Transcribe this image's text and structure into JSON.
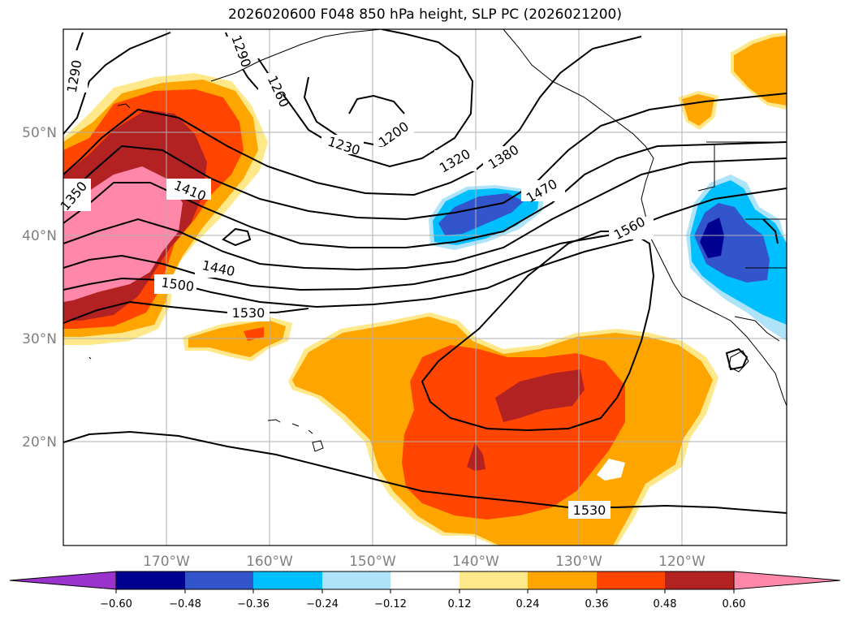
{
  "title": "2026020600 F048 850 hPa height, SLP PC (2026021200)",
  "lat_labels": [
    "50°N",
    "40°N",
    "30°N",
    "20°N"
  ],
  "lon_labels": [
    "170°W",
    "160°W",
    "150°W",
    "140°W",
    "130°W",
    "120°W"
  ],
  "contour_labels": [
    "1290",
    "1290",
    "1260",
    "1230",
    "1200",
    "1320",
    "1380",
    "1470",
    "1350",
    "1410",
    "1440",
    "1500",
    "1530",
    "1560",
    "1530"
  ],
  "colorbar": {
    "ticks": [
      "−0.60",
      "−0.48",
      "−0.36",
      "−0.24",
      "−0.12",
      "0.12",
      "0.24",
      "0.36",
      "0.48",
      "0.60"
    ],
    "colors": [
      "#9933cc",
      "#000090",
      "#3355cc",
      "#00bfff",
      "#aee3fa",
      "#ffffff",
      "#ffe88a",
      "#ffa500",
      "#ff4500",
      "#b22222",
      "#ff88aa"
    ]
  },
  "palette": {
    "pos1": "#ffe88a",
    "pos2": "#ffa500",
    "pos3": "#ff4500",
    "pos4": "#b22222",
    "pos5": "#ff88aa",
    "neg1": "#aee3fa",
    "neg2": "#00bfff",
    "neg3": "#3355cc",
    "neg4": "#000090"
  }
}
